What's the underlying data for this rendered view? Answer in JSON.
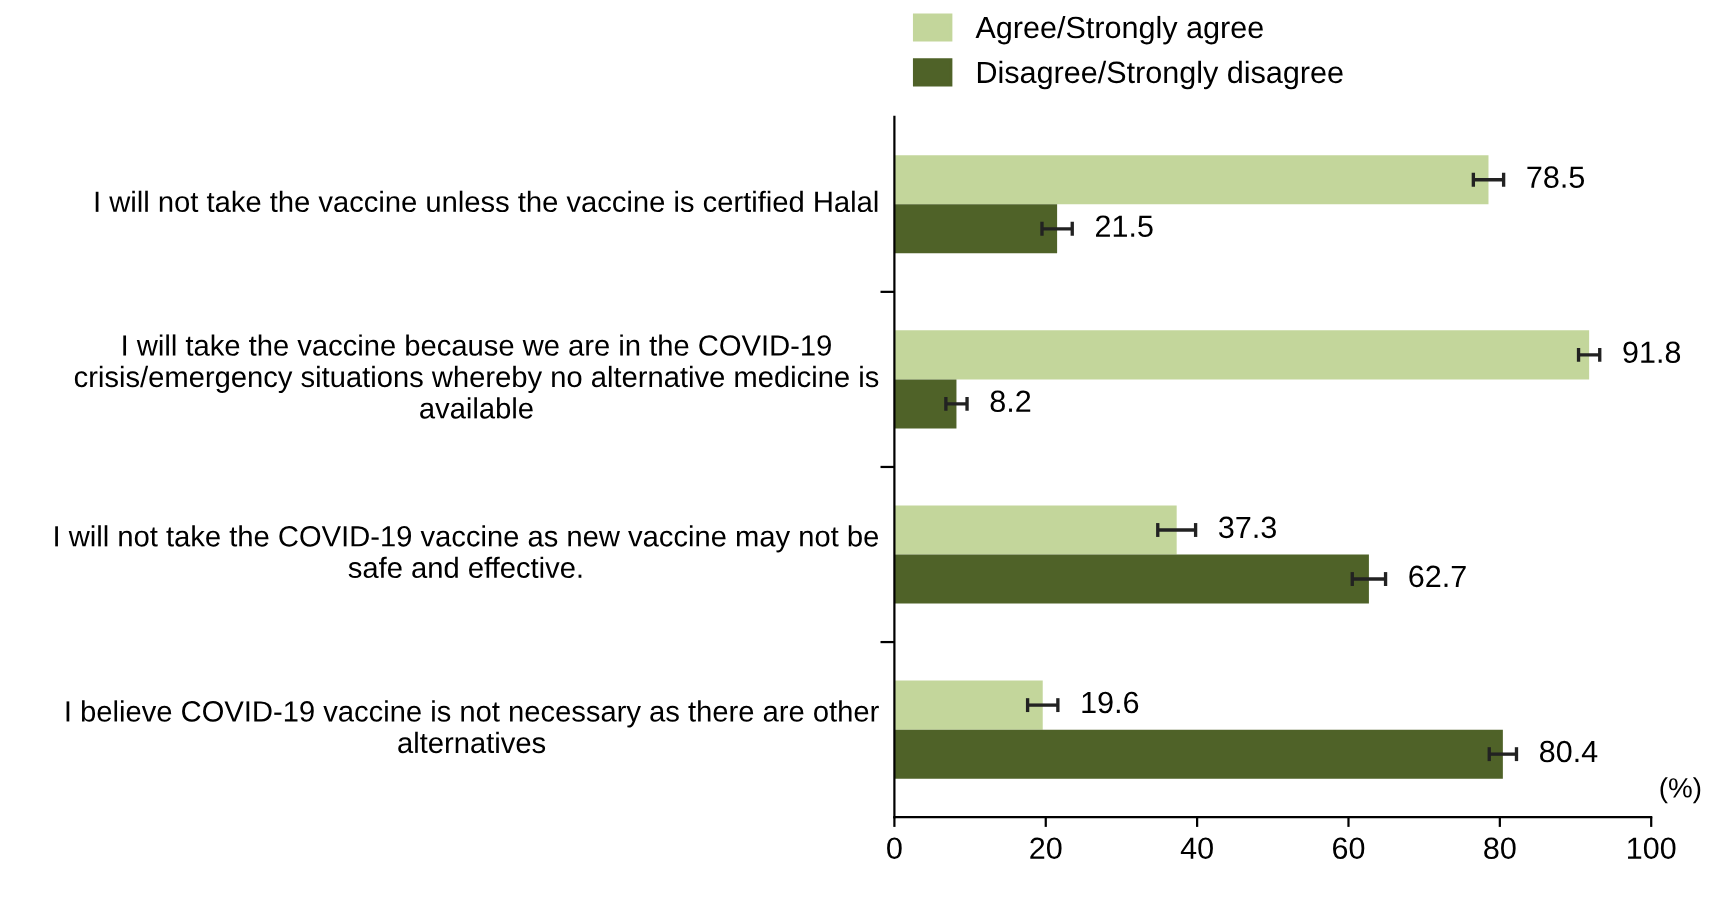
{
  "chart_data": {
    "type": "bar",
    "orientation": "horizontal",
    "categories": [
      "I will not take the vaccine unless the vaccine is certified Halal",
      "I will take the vaccine because we are in the COVID-19 crisis/emergency situations whereby no alternative medicine is available",
      "I will not take the COVID-19 vaccine as new vaccine may not be safe and effective.",
      "I believe COVID-19 vaccine is not necessary as there are other alternatives"
    ],
    "series": [
      {
        "name": "Agree/Strongly agree",
        "color": "#c3d69b",
        "values": [
          78.5,
          91.8,
          37.3,
          19.6
        ],
        "errors": [
          2,
          1.4,
          2.5,
          2
        ]
      },
      {
        "name": "Disagree/Strongly disagree",
        "color": "#4f6228",
        "values": [
          21.5,
          8.2,
          62.7,
          80.4
        ],
        "errors": [
          2,
          1.4,
          2.2,
          1.8
        ]
      }
    ],
    "data_labels": true,
    "xlim": [
      0,
      100
    ],
    "xticks": [
      0,
      20,
      40,
      60,
      80,
      100
    ],
    "annotations": [
      "(%)"
    ],
    "legend": "top",
    "grid": false
  }
}
